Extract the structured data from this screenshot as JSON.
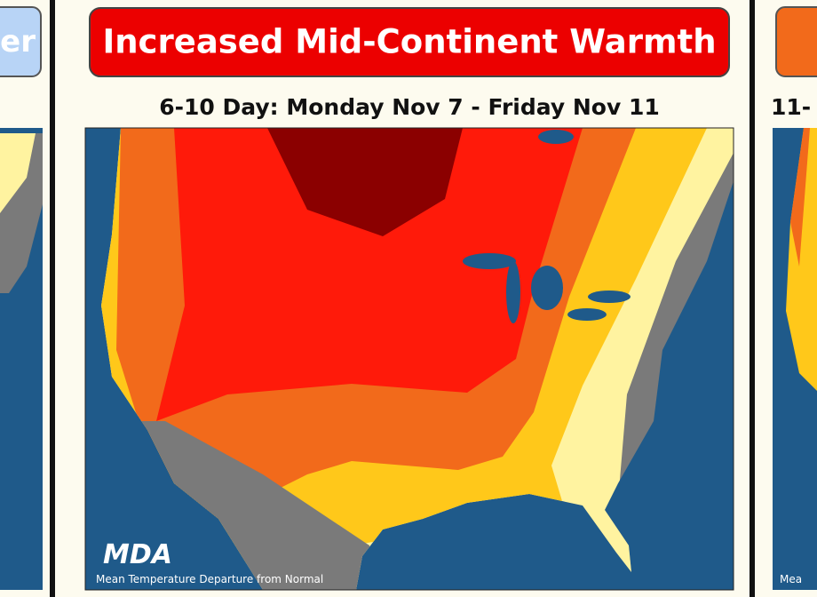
{
  "left_panel": {
    "title": "er"
  },
  "center_panel": {
    "title": "Increased Mid-Continent Warmth",
    "subtitle": "6-10 Day: Monday Nov 7 - Friday Nov 11",
    "logo": "MDA",
    "caption": "Mean Temperature Departure from Normal"
  },
  "right_panel": {
    "subtitle": "11-",
    "caption": "Mea"
  }
}
